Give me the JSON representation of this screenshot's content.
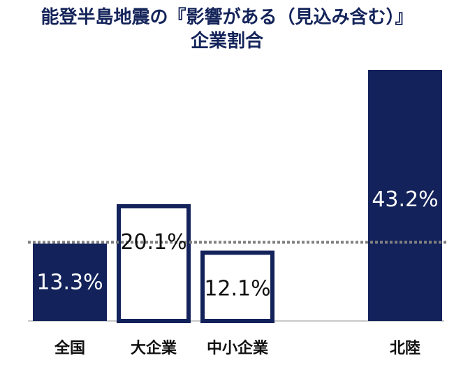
{
  "chart_data": {
    "type": "bar",
    "title_lines": [
      "能登半島地震の『影響がある（見込み含む）』",
      "企業割合"
    ],
    "categories": [
      "全国",
      "大企業",
      "中小企業",
      "北陸"
    ],
    "values": [
      13.3,
      20.1,
      12.1,
      43.2
    ],
    "value_labels": [
      "13.3%",
      "20.1%",
      "12.1%",
      "43.2%"
    ],
    "bar_styles": [
      "filled",
      "outline",
      "outline",
      "filled"
    ],
    "reference_line": {
      "value": 13.3,
      "style": "dotted"
    },
    "ylim": [
      0,
      43.2
    ],
    "grid": false,
    "legend": "none",
    "colors": {
      "bar": "#13225a",
      "reference_line": "#808080",
      "title": "#14245a",
      "category_label": "#111111",
      "axis": "#c8c8c8",
      "filled_label": "#ffffff",
      "outline_label": "#111111"
    }
  }
}
